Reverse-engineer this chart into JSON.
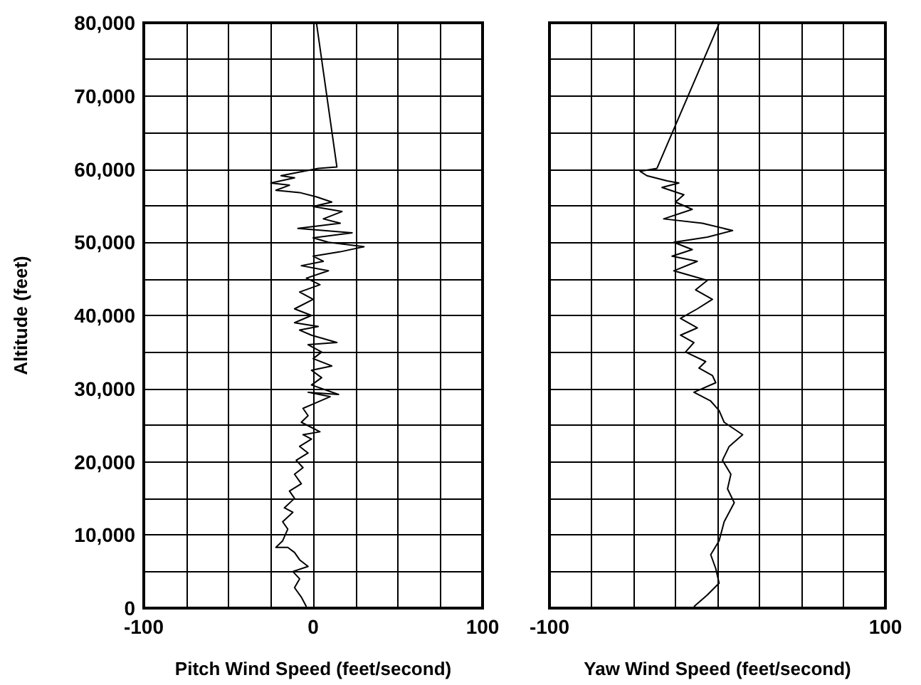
{
  "chart_data": [
    {
      "type": "line",
      "xlabel": "Pitch Wind Speed (feet/second)",
      "ylabel": "Altitude (feet)",
      "xlim": [
        -100,
        100
      ],
      "ylim": [
        0,
        80000
      ],
      "grid": true,
      "marker": "none",
      "line_style": "solid",
      "xticks": [
        -100,
        {
          "value": -75,
          "label": null
        },
        {
          "value": -50,
          "label": null
        },
        {
          "value": -25,
          "label": null
        },
        0,
        {
          "value": 25,
          "label": null
        },
        {
          "value": 50,
          "label": null
        },
        {
          "value": 75,
          "label": null
        },
        100
      ],
      "yticks": [
        {
          "value": 0,
          "label": "0"
        },
        {
          "value": 5000,
          "label": null
        },
        {
          "value": 10000,
          "label": "10,000"
        },
        {
          "value": 15000,
          "label": null
        },
        {
          "value": 20000,
          "label": "20,000"
        },
        {
          "value": 25000,
          "label": null
        },
        {
          "value": 30000,
          "label": "30,000"
        },
        {
          "value": 35000,
          "label": null
        },
        {
          "value": 40000,
          "label": "40,000"
        },
        {
          "value": 45000,
          "label": null
        },
        {
          "value": 50000,
          "label": "50,000"
        },
        {
          "value": 55000,
          "label": null
        },
        {
          "value": 60000,
          "label": "60,000"
        },
        {
          "value": 65000,
          "label": null
        },
        {
          "value": 70000,
          "label": "70,000"
        },
        {
          "value": 75000,
          "label": null
        },
        {
          "value": 80000,
          "label": "80,000"
        }
      ],
      "series": [
        {
          "color": "#000000",
          "x": [
            -4,
            -7,
            -11,
            -8,
            -12,
            -3,
            -8,
            -11,
            -15,
            -22,
            -18,
            -15,
            -18,
            -12,
            -17,
            -11,
            -14,
            -7,
            -11,
            -6,
            -10,
            -3,
            -8,
            -1,
            -6,
            4,
            -7,
            -3,
            -6,
            0,
            10,
            -3,
            15,
            -1,
            5,
            -1,
            11,
            0,
            5,
            -3,
            14,
            -1,
            -8,
            3,
            -11,
            -1,
            -11,
            0,
            -8,
            4,
            -4,
            9,
            -7,
            6,
            0,
            16,
            30,
            9,
            0,
            23,
            -9,
            16,
            6,
            17,
            0,
            11,
            2,
            -8,
            -22,
            -14,
            -25,
            -11,
            -19,
            3,
            14,
            2
          ],
          "values": [
            200,
            1500,
            2800,
            4000,
            5000,
            5700,
            6600,
            7600,
            8300,
            8300,
            9200,
            10800,
            11800,
            13100,
            13700,
            15000,
            16000,
            17000,
            18300,
            19200,
            20200,
            21200,
            22100,
            23100,
            23700,
            24100,
            25400,
            26300,
            27300,
            27900,
            28900,
            29500,
            29200,
            30500,
            31500,
            32500,
            33100,
            34100,
            35000,
            36000,
            36300,
            37300,
            38000,
            38500,
            39000,
            40000,
            40900,
            42200,
            43200,
            44200,
            45100,
            46100,
            46800,
            47400,
            48100,
            48700,
            49400,
            50000,
            50600,
            51300,
            51900,
            52600,
            53200,
            54200,
            54900,
            55500,
            56200,
            56800,
            57100,
            57800,
            58100,
            58800,
            59100,
            60100,
            60300,
            79900
          ]
        }
      ]
    },
    {
      "type": "line",
      "xlabel": "Yaw Wind Speed (feet/second)",
      "xlim": [
        -100,
        100
      ],
      "ylim": [
        0,
        80000
      ],
      "grid": true,
      "marker": "none",
      "line_style": "solid",
      "xticks": [
        -100,
        {
          "value": -75,
          "label": null
        },
        {
          "value": -50,
          "label": null
        },
        {
          "value": -25,
          "label": null
        },
        {
          "value": 0,
          "label": null
        },
        {
          "value": 25,
          "label": null
        },
        {
          "value": 50,
          "label": null
        },
        {
          "value": 75,
          "label": null
        },
        100
      ],
      "tick_labels": "x",
      "yticks": [
        0,
        5000,
        10000,
        15000,
        20000,
        25000,
        30000,
        35000,
        40000,
        45000,
        50000,
        55000,
        60000,
        65000,
        70000,
        75000,
        80000
      ],
      "series": [
        {
          "color": "#000000",
          "x": [
            -14,
            -11,
            -6,
            1,
            -1,
            -4,
            1,
            4,
            10,
            6,
            8,
            3,
            7,
            15,
            4,
            1,
            -4,
            -14,
            -1,
            -3,
            -11,
            -7,
            -19,
            -14,
            -22,
            -12,
            -22,
            -12,
            -3,
            -13,
            -6,
            -26,
            -12,
            -27,
            -15,
            -26,
            -6,
            9,
            -9,
            -32,
            -15,
            -25,
            -20,
            -33,
            -23,
            -30,
            -42,
            -46,
            -36,
            1
          ],
          "values": [
            200,
            800,
            1800,
            3400,
            5400,
            7300,
            9200,
            11800,
            14400,
            16300,
            18300,
            20200,
            22100,
            23700,
            25400,
            27000,
            28300,
            29500,
            30800,
            31800,
            32800,
            33700,
            35000,
            36300,
            37300,
            38300,
            39600,
            40900,
            42200,
            43500,
            44800,
            46100,
            47400,
            48100,
            49000,
            50000,
            50700,
            51600,
            52600,
            53200,
            54500,
            55500,
            56500,
            57500,
            58100,
            58400,
            59100,
            59700,
            60100,
            79900
          ]
        }
      ]
    }
  ]
}
